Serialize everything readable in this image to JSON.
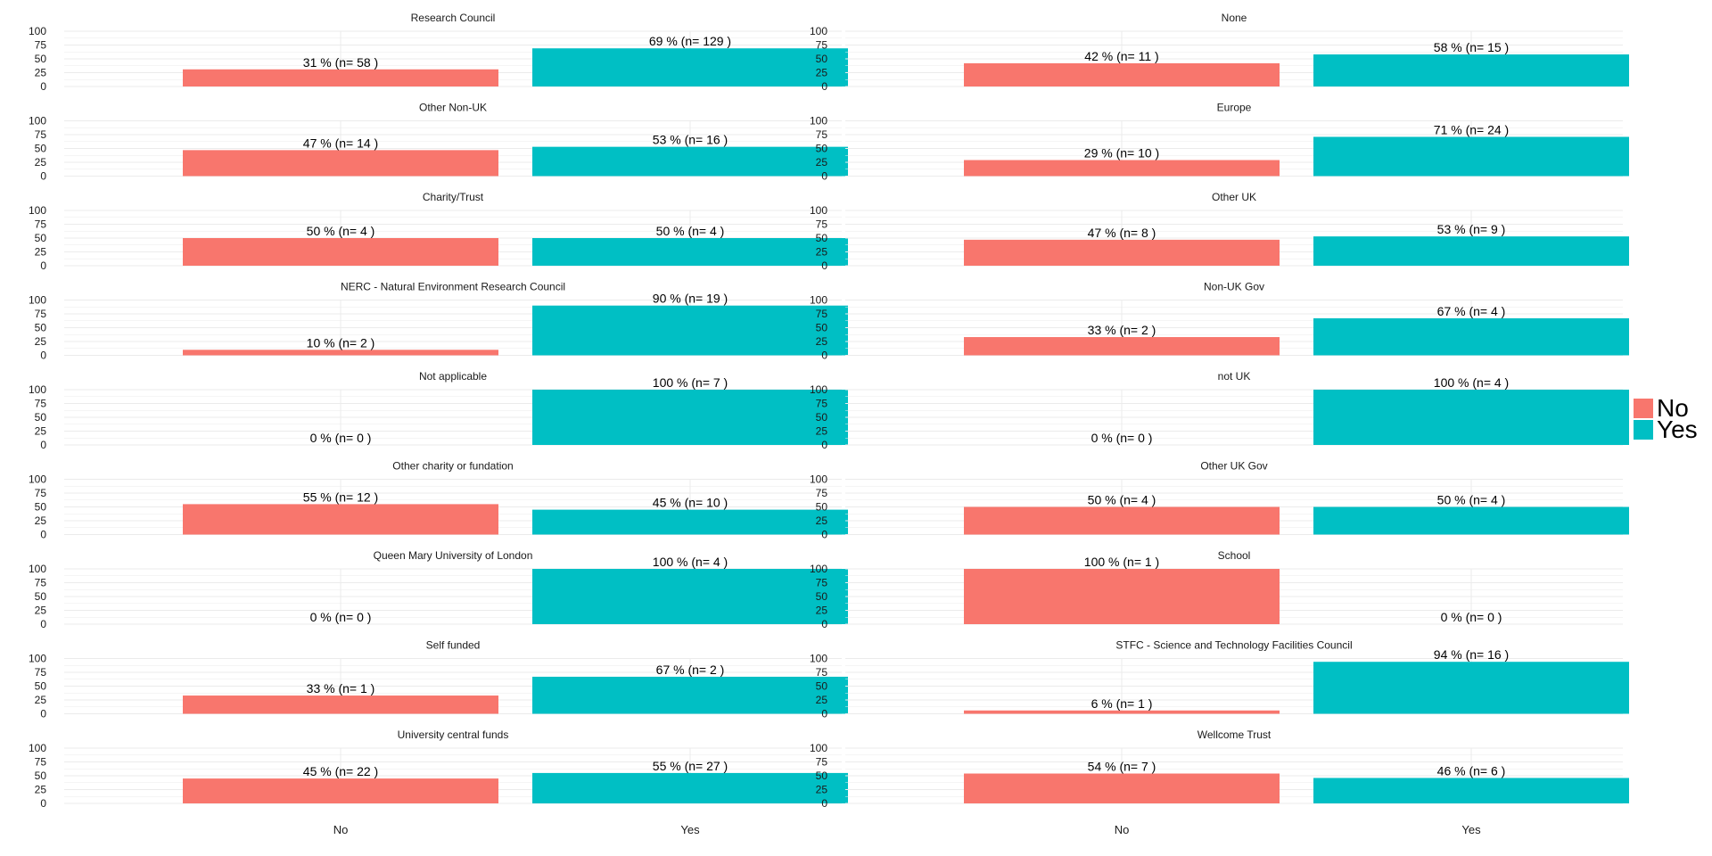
{
  "chart_data": {
    "type": "bar",
    "layout": "facet_grid",
    "columns": 2,
    "categories": [
      "No",
      "Yes"
    ],
    "colors": {
      "No": "#F8766D",
      "Yes": "#00BFC4",
      "grid": "#ebebeb"
    },
    "y_ticks": [
      "100",
      "75",
      "50",
      "25",
      "0"
    ],
    "ylim": [
      0,
      100
    ],
    "legend": {
      "position": "right",
      "entries": [
        "No",
        "Yes"
      ]
    },
    "panels": [
      {
        "title": "Research Council",
        "values": [
          31,
          69
        ],
        "labels": [
          "31 %  (n= 58 )",
          "69 %  (n= 129 )"
        ]
      },
      {
        "title": "None",
        "values": [
          42,
          58
        ],
        "labels": [
          "42 %  (n= 11 )",
          "58 %  (n= 15 )"
        ]
      },
      {
        "title": "Other Non-UK",
        "values": [
          47,
          53
        ],
        "labels": [
          "47 %  (n= 14 )",
          "53 %  (n= 16 )"
        ]
      },
      {
        "title": "Europe",
        "values": [
          29,
          71
        ],
        "labels": [
          "29 %  (n= 10 )",
          "71 %  (n= 24 )"
        ]
      },
      {
        "title": "Charity/Trust",
        "values": [
          50,
          50
        ],
        "labels": [
          "50 %  (n= 4 )",
          "50 %  (n= 4 )"
        ]
      },
      {
        "title": "Other UK",
        "values": [
          47,
          53
        ],
        "labels": [
          "47 %  (n= 8 )",
          "53 %  (n= 9 )"
        ]
      },
      {
        "title": "NERC - Natural Environment Research Council",
        "values": [
          10,
          90
        ],
        "labels": [
          "10 %  (n= 2 )",
          "90 %  (n= 19 )"
        ]
      },
      {
        "title": "Non-UK Gov",
        "values": [
          33,
          67
        ],
        "labels": [
          "33 %  (n= 2 )",
          "67 %  (n= 4 )"
        ]
      },
      {
        "title": "Not applicable",
        "values": [
          0,
          100
        ],
        "labels": [
          "0 %  (n= 0 )",
          "100 %  (n= 7 )"
        ]
      },
      {
        "title": "not UK",
        "values": [
          0,
          100
        ],
        "labels": [
          "0 %  (n= 0 )",
          "100 %  (n= 4 )"
        ]
      },
      {
        "title": "Other charity or fundation",
        "values": [
          55,
          45
        ],
        "labels": [
          "55 %  (n= 12 )",
          "45 %  (n= 10 )"
        ]
      },
      {
        "title": "Other UK Gov",
        "values": [
          50,
          50
        ],
        "labels": [
          "50 %  (n= 4 )",
          "50 %  (n= 4 )"
        ]
      },
      {
        "title": "Queen Mary University of London",
        "values": [
          0,
          100
        ],
        "labels": [
          "0 %  (n= 0 )",
          "100 %  (n= 4 )"
        ]
      },
      {
        "title": "School",
        "values": [
          100,
          0
        ],
        "labels": [
          "100 %  (n= 1 )",
          "0 %  (n= 0 )"
        ]
      },
      {
        "title": "Self funded",
        "values": [
          33,
          67
        ],
        "labels": [
          "33 %  (n= 1 )",
          "67 %  (n= 2 )"
        ]
      },
      {
        "title": "STFC - Science and Technology Facilities Council",
        "values": [
          6,
          94
        ],
        "labels": [
          "6 %  (n= 1 )",
          "94 %  (n= 16 )"
        ]
      },
      {
        "title": "University central funds",
        "values": [
          45,
          55
        ],
        "labels": [
          "45 %  (n= 22 )",
          "55 %  (n= 27 )"
        ]
      },
      {
        "title": "Wellcome Trust",
        "values": [
          54,
          46
        ],
        "labels": [
          "54 %  (n= 7 )",
          "46 %  (n= 6 )"
        ]
      }
    ]
  }
}
